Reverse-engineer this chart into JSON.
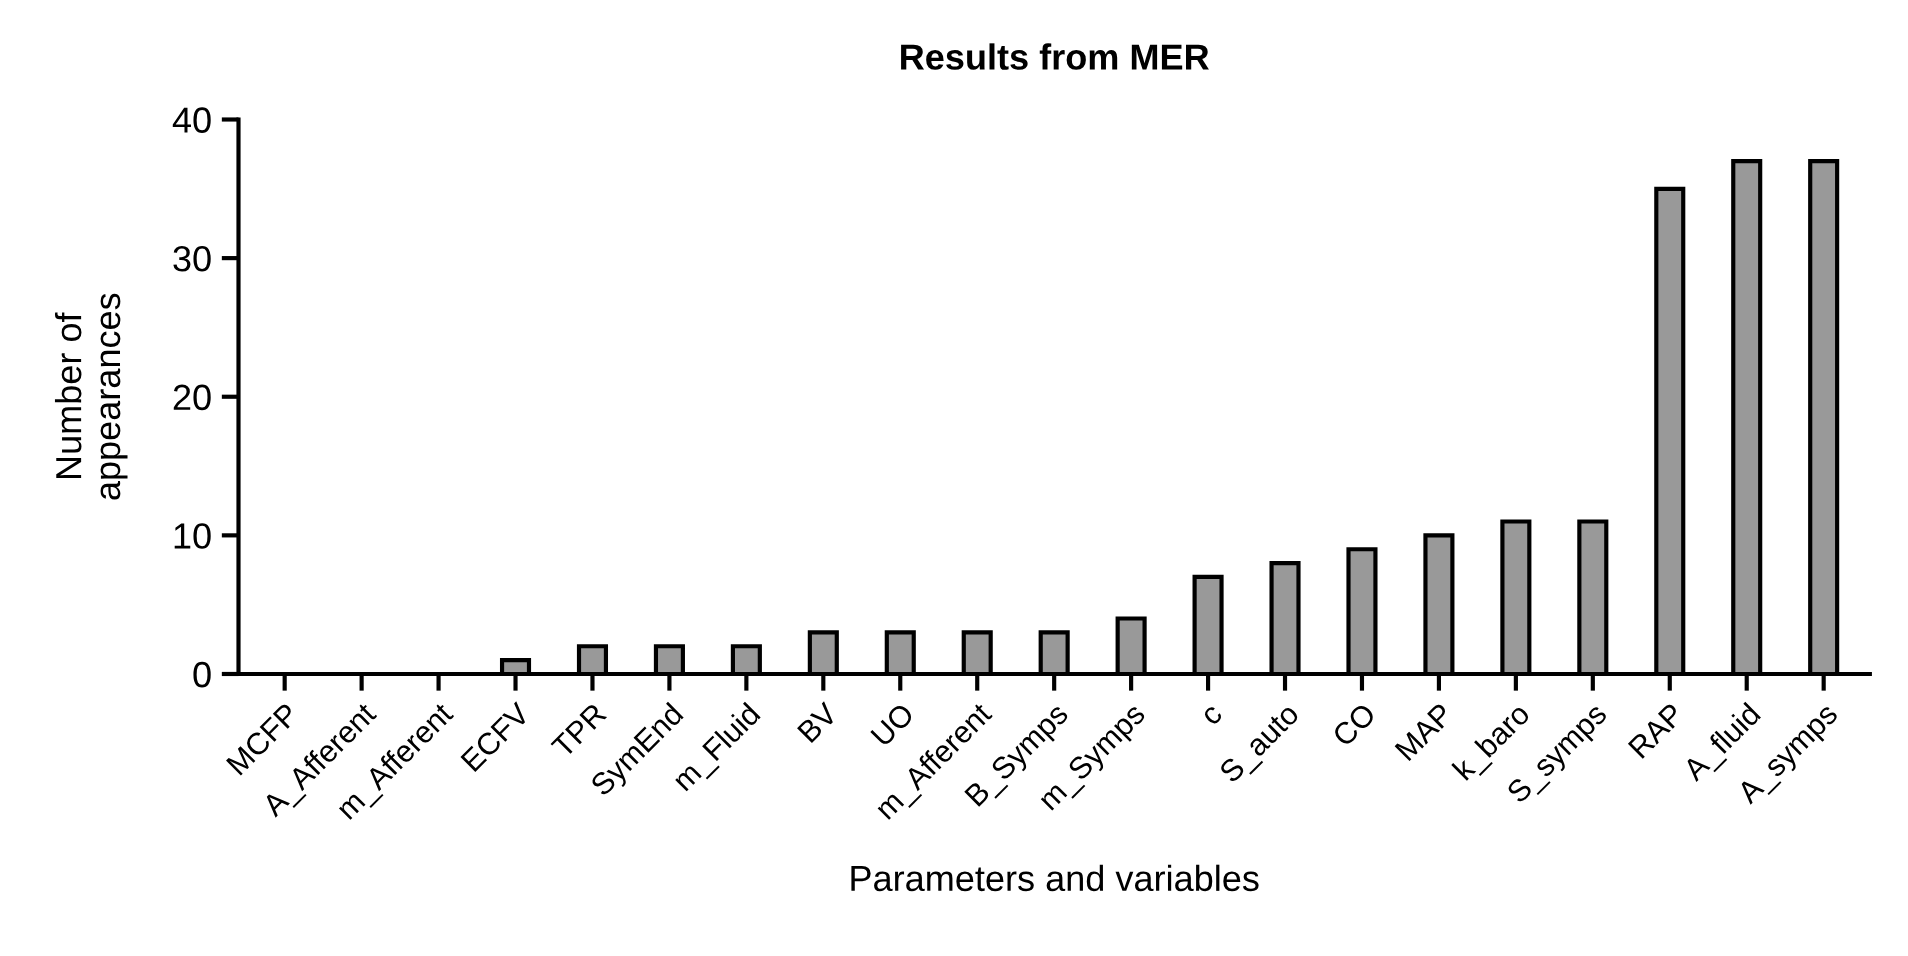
{
  "chart_data": {
    "type": "bar",
    "title": "Results from MER",
    "xlabel": "Parameters and variables",
    "ylabel": "Number of\nappearances",
    "categories": [
      "MCFP",
      "A_Afferent",
      "m_Afferent",
      "ECFV",
      "TPR",
      "SymEnd",
      "m_Fluid",
      "BV",
      "UO",
      "m_Afferent",
      "B_Symps",
      "m_Symps",
      "c",
      "S_auto",
      "CO",
      "MAP",
      "k_baro",
      "S_symps",
      "RAP",
      "A_fluid",
      "A_symps"
    ],
    "values": [
      0,
      0,
      0,
      1,
      2,
      2,
      2,
      3,
      3,
      3,
      3,
      4,
      7,
      8,
      9,
      10,
      11,
      11,
      35,
      37,
      37
    ],
    "color": "#999999",
    "ylim": [
      0,
      40
    ],
    "yticks": [
      0,
      10,
      20,
      30,
      40
    ],
    "grid": false
  }
}
